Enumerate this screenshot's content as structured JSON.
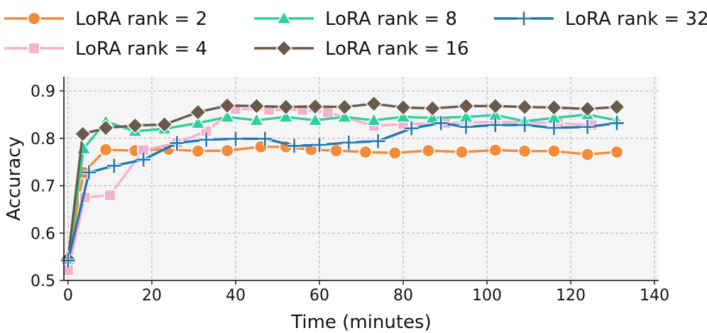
{
  "chart_data": {
    "type": "line",
    "title": "",
    "xlabel": "Time (minutes)",
    "ylabel": "Accuracy",
    "xlim": [
      -1,
      141
    ],
    "ylim": [
      0.5,
      0.93
    ],
    "xticks": [
      0,
      20,
      40,
      60,
      80,
      100,
      120,
      140
    ],
    "yticks": [
      0.5,
      0.6,
      0.7,
      0.8,
      0.9
    ],
    "xtick_labels": [
      "0",
      "20",
      "40",
      "60",
      "80",
      "100",
      "120",
      "140"
    ],
    "ytick_labels": [
      "0.5",
      "0.6",
      "0.7",
      "0.8",
      "0.9"
    ],
    "grid": true,
    "legend_position": "top",
    "series": [
      {
        "name": "LoRA rank = 2",
        "color": "#f28c3a",
        "marker": "circle",
        "x": [
          0,
          3.7,
          9,
          16,
          18,
          24,
          31,
          38,
          46,
          52,
          58,
          64,
          71,
          78,
          86,
          94,
          102,
          109,
          116,
          124,
          131
        ],
        "y": [
          0.545,
          0.728,
          0.776,
          0.774,
          0.775,
          0.777,
          0.773,
          0.774,
          0.782,
          0.782,
          0.776,
          0.774,
          0.771,
          0.769,
          0.774,
          0.771,
          0.775,
          0.773,
          0.773,
          0.766,
          0.771
        ]
      },
      {
        "name": "LoRA rank = 4",
        "color": "#f4b2cf",
        "marker": "square",
        "x": [
          0,
          4,
          10,
          18,
          26,
          33,
          40,
          48,
          56,
          62,
          73,
          80,
          90,
          102,
          117,
          125
        ],
        "y": [
          0.522,
          0.675,
          0.68,
          0.775,
          0.79,
          0.815,
          0.862,
          0.86,
          0.86,
          0.855,
          0.826,
          0.83,
          0.832,
          0.835,
          0.832,
          0.828
        ]
      },
      {
        "name": "LoRA rank = 8",
        "color": "#2ecf9f",
        "marker": "triangle",
        "x": [
          0,
          3.7,
          9,
          16,
          23,
          31,
          38,
          45,
          52,
          59,
          66,
          73,
          80,
          87,
          95,
          102,
          109,
          116,
          124,
          131
        ],
        "y": [
          0.545,
          0.778,
          0.835,
          0.815,
          0.82,
          0.832,
          0.845,
          0.838,
          0.845,
          0.838,
          0.845,
          0.838,
          0.845,
          0.843,
          0.845,
          0.849,
          0.836,
          0.843,
          0.85,
          0.838
        ]
      },
      {
        "name": "LoRA rank = 16",
        "color": "#6a5a4a",
        "marker": "diamond",
        "x": [
          0,
          3.5,
          9,
          16,
          23,
          31,
          38,
          45,
          52,
          59,
          66,
          73,
          80,
          87,
          95,
          102,
          109,
          116,
          124,
          131
        ],
        "y": [
          0.545,
          0.809,
          0.822,
          0.827,
          0.829,
          0.855,
          0.869,
          0.868,
          0.866,
          0.867,
          0.866,
          0.873,
          0.865,
          0.863,
          0.868,
          0.868,
          0.866,
          0.865,
          0.862,
          0.866
        ]
      },
      {
        "name": "LoRA rank = 32",
        "color": "#1f77b4",
        "marker": "plus",
        "x": [
          0,
          5,
          11,
          18,
          26,
          33,
          40,
          47,
          54,
          60,
          67,
          74,
          82,
          89,
          95,
          102,
          109,
          116,
          124,
          131
        ],
        "y": [
          0.542,
          0.728,
          0.742,
          0.755,
          0.79,
          0.797,
          0.799,
          0.799,
          0.784,
          0.786,
          0.791,
          0.794,
          0.821,
          0.832,
          0.824,
          0.828,
          0.828,
          0.822,
          0.824,
          0.832
        ]
      }
    ]
  }
}
